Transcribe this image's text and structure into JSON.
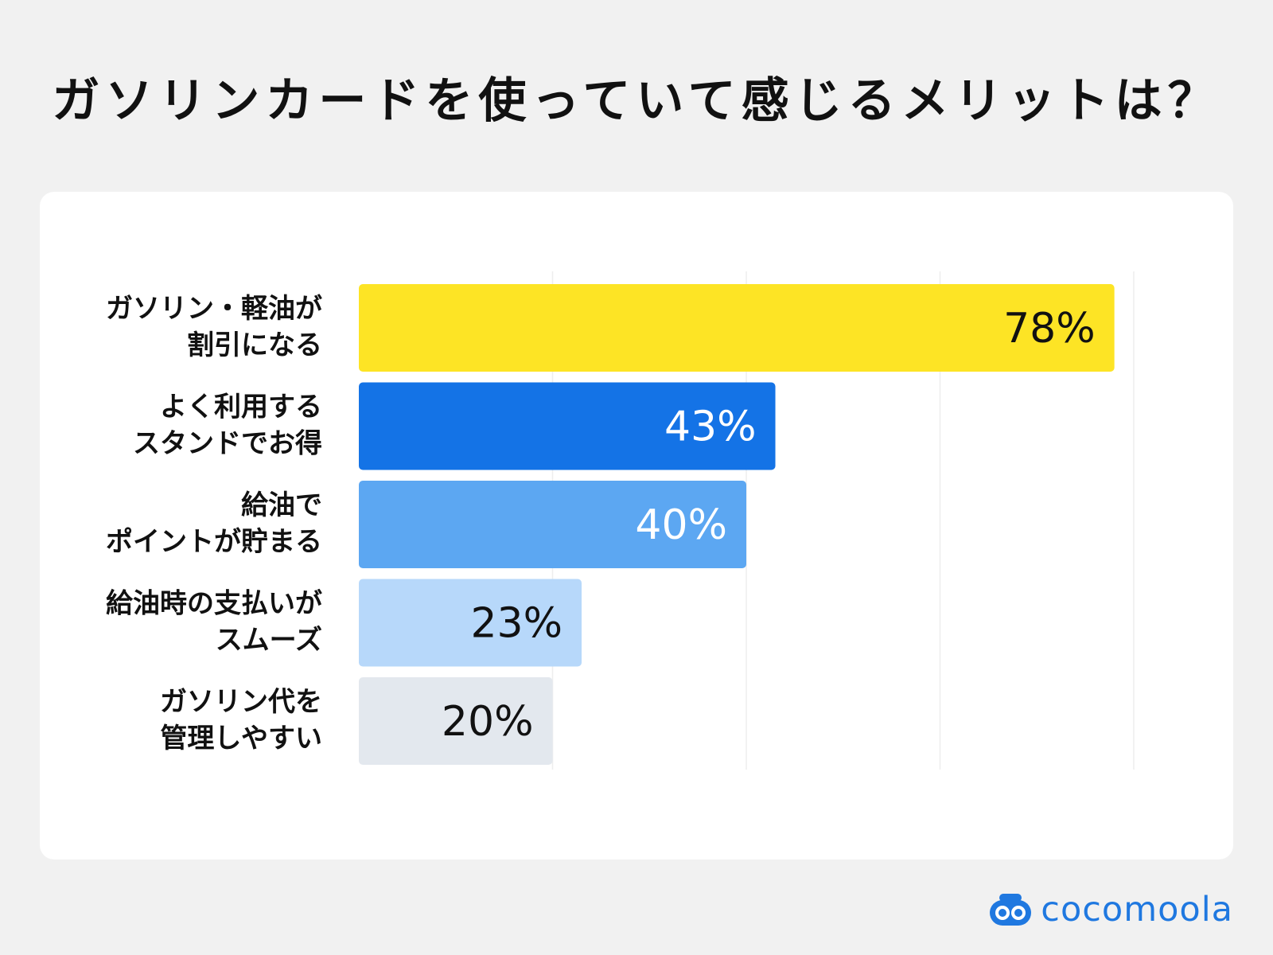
{
  "title": "ガソリンカードを使っていて感じるメリットは？",
  "brand": {
    "name": "cocomoola",
    "icon": "cocomoola-logo-icon",
    "color": "#1f78e0"
  },
  "chart_data": {
    "type": "bar",
    "orientation": "horizontal",
    "categories": [
      [
        "ガソリン・軽油が",
        "割引になる"
      ],
      [
        "よく利用する",
        "スタンドでお得"
      ],
      [
        "給油で",
        "ポイントが貯まる"
      ],
      [
        "給油時の支払いが",
        "スムーズ"
      ],
      [
        "ガソリン代を",
        "管理しやすい"
      ]
    ],
    "values": [
      78,
      43,
      40,
      23,
      20
    ],
    "value_labels": [
      "78%",
      "43%",
      "40%",
      "23%",
      "20%"
    ],
    "unit": "%",
    "colors": [
      "#fde425",
      "#1473e6",
      "#5ca7f2",
      "#b7d8fa",
      "#e3e8ee"
    ],
    "label_colors": [
      "#111111",
      "#ffffff",
      "#ffffff",
      "#111111",
      "#111111"
    ],
    "xlim": [
      0,
      80
    ],
    "grid": true,
    "legend": "none"
  }
}
